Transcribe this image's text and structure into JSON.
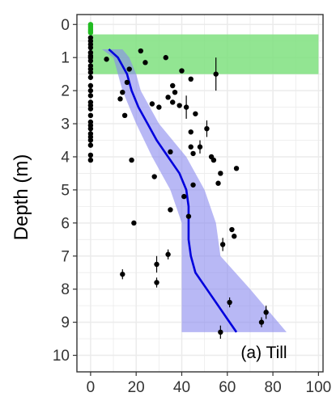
{
  "chart_data": {
    "type": "scatter",
    "title": "",
    "xlabel": "",
    "ylabel": "Depth (m)",
    "annotation": "(a) Till",
    "xlim": [
      -6,
      102
    ],
    "ylim": [
      -0.3,
      10.5
    ],
    "y_reversed": true,
    "grid": true,
    "x_ticks": [
      0,
      20,
      40,
      60,
      80,
      100
    ],
    "y_ticks": [
      0,
      1,
      2,
      3,
      4,
      5,
      6,
      7,
      8,
      9,
      10
    ],
    "colors": {
      "points": "#000000",
      "zero_points_top": "#22bb22",
      "trend_line": "#0000dd",
      "confidence_band": "#8888ee",
      "highlight_band": "#7fe07f",
      "grid": "#ebebeb",
      "panel_border": "#333333"
    },
    "highlight_band": {
      "x_range": [
        0,
        100
      ],
      "depth_range": [
        0.3,
        1.5
      ]
    },
    "confidence_band": {
      "depth": [
        0.75,
        1.0,
        1.5,
        2.0,
        3.0,
        4.0,
        5.0,
        6.0,
        7.0,
        8.0,
        9.3
      ],
      "lower": [
        5,
        10,
        12,
        14,
        20,
        27,
        35,
        40,
        40,
        40,
        40
      ],
      "upper": [
        14,
        17,
        20,
        22,
        30,
        42,
        50,
        55,
        57,
        70,
        86
      ]
    },
    "trend_line": {
      "depth": [
        0.75,
        1.0,
        1.5,
        2.0,
        2.5,
        3.0,
        3.5,
        4.0,
        4.5,
        5.0,
        5.5,
        6.0,
        6.5,
        7.0,
        7.5,
        8.0,
        8.5,
        9.0,
        9.3
      ],
      "x": [
        8,
        12,
        16,
        18,
        21,
        25,
        29,
        34,
        39,
        42,
        43,
        43,
        43,
        44,
        46,
        51,
        56,
        61,
        64
      ]
    },
    "zero_points": {
      "green_depths": [
        0.0,
        0.05,
        0.1,
        0.15,
        0.2,
        0.25
      ],
      "black_depths": [
        0.4,
        0.5,
        0.6,
        0.7,
        0.85,
        0.95,
        1.0,
        1.1,
        1.25,
        1.35,
        1.45,
        1.6,
        1.85,
        2.0,
        2.15,
        2.35,
        2.45,
        2.55,
        2.75,
        2.95,
        3.05,
        3.15,
        3.3,
        3.4,
        3.5,
        3.65,
        3.95,
        4.1
      ]
    },
    "points": [
      {
        "x": 7,
        "y": 1.05
      },
      {
        "x": 13,
        "y": 2.25
      },
      {
        "x": 14,
        "y": 2.05
      },
      {
        "x": 15,
        "y": 2.75
      },
      {
        "x": 16,
        "y": 1.75
      },
      {
        "x": 17,
        "y": 1.35
      },
      {
        "x": 18,
        "y": 4.1
      },
      {
        "x": 19,
        "y": 6.0
      },
      {
        "x": 22,
        "y": 0.8
      },
      {
        "x": 24,
        "y": 1.15
      },
      {
        "x": 27,
        "y": 2.4
      },
      {
        "x": 28,
        "y": 4.6
      },
      {
        "x": 29,
        "y": 7.25,
        "err": 0.25
      },
      {
        "x": 29,
        "y": 7.8,
        "err": 0.15
      },
      {
        "x": 30,
        "y": 2.5
      },
      {
        "x": 33,
        "y": 1.0
      },
      {
        "x": 34,
        "y": 2.2
      },
      {
        "x": 34,
        "y": 6.95,
        "err": 0.15
      },
      {
        "x": 35,
        "y": 5.6
      },
      {
        "x": 35,
        "y": 3.85
      },
      {
        "x": 36,
        "y": 1.85
      },
      {
        "x": 36,
        "y": 2.35
      },
      {
        "x": 37,
        "y": 2.05
      },
      {
        "x": 39,
        "y": 2.45
      },
      {
        "x": 40,
        "y": 1.4
      },
      {
        "x": 41,
        "y": 5.2
      },
      {
        "x": 42,
        "y": 2.5,
        "err": 0.35
      },
      {
        "x": 43,
        "y": 5.8
      },
      {
        "x": 44,
        "y": 1.65
      },
      {
        "x": 44,
        "y": 3.7
      },
      {
        "x": 44,
        "y": 3.25
      },
      {
        "x": 45,
        "y": 3.9
      },
      {
        "x": 45,
        "y": 4.85
      },
      {
        "x": 46,
        "y": 2.7
      },
      {
        "x": 48,
        "y": 3.7,
        "err": 0.2
      },
      {
        "x": 51,
        "y": 3.15,
        "err": 0.25
      },
      {
        "x": 53,
        "y": 4.0
      },
      {
        "x": 54,
        "y": 4.1
      },
      {
        "x": 55,
        "y": 1.5,
        "err": 0.5
      },
      {
        "x": 56,
        "y": 4.8
      },
      {
        "x": 57,
        "y": 4.5
      },
      {
        "x": 58,
        "y": 6.65,
        "err": 0.2
      },
      {
        "x": 57,
        "y": 9.3,
        "err": 0.2
      },
      {
        "x": 61,
        "y": 8.4,
        "err": 0.15
      },
      {
        "x": 62,
        "y": 6.2
      },
      {
        "x": 63,
        "y": 6.4
      },
      {
        "x": 64,
        "y": 4.35
      },
      {
        "x": 75,
        "y": 9.0,
        "err": 0.15
      },
      {
        "x": 77,
        "y": 8.7,
        "err": 0.2
      },
      {
        "x": 14,
        "y": 7.55,
        "err": 0.15
      }
    ]
  }
}
